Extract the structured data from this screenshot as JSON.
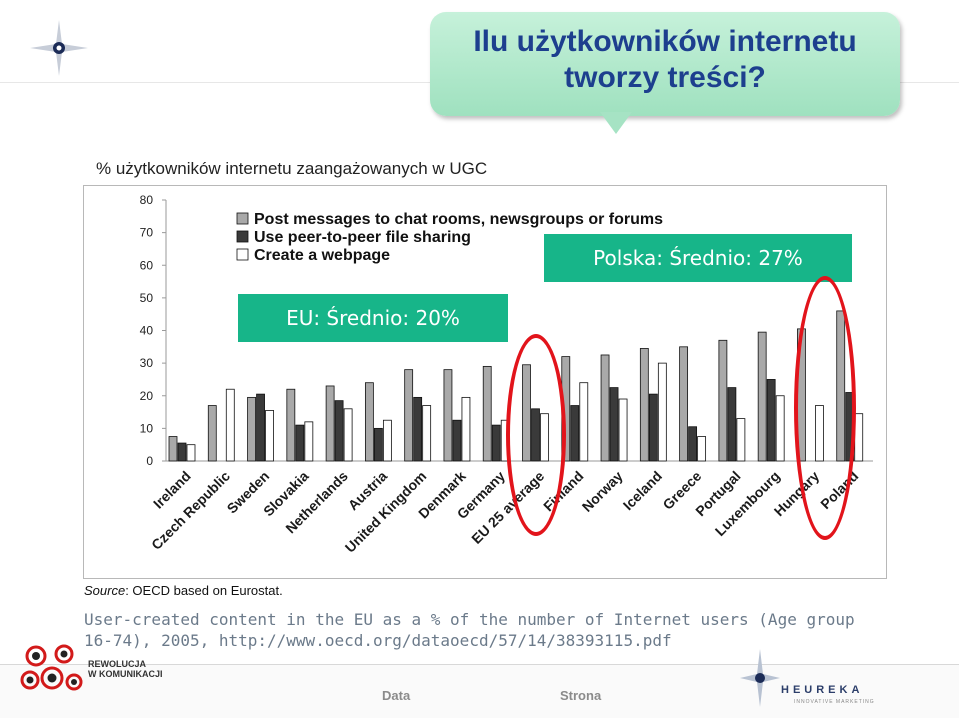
{
  "title": "Ilu użytkowników internetu tworzy treści?",
  "subtitle": "% użytkowników internetu zaangażowanych w UGC",
  "eu_label": "EU: Średnio: 20%",
  "pl_label": "Polska: Średnio: 27%",
  "source_prefix": "Source",
  "source_text": ": OECD based on Eurostat.",
  "caption": "User-created content in the EU as a % of the number of Internet users (Age group 16-74), 2005, http://www.oecd.org/dataoecd/57/14/38393115.pdf",
  "footer": {
    "nav_data": "Data",
    "nav_strona": "Strona",
    "logo_left_line1": "REWOLUCJA",
    "logo_left_line2": "W KOMUNIKACJI",
    "logo_right": "HEUREKA",
    "logo_right_sub": "INNOVATIVE MARKETING"
  },
  "colors": {
    "series1": "#a9a9a9",
    "series2": "#3a3a3a",
    "series3": "#ffffff",
    "highlight_box": "#17b589",
    "ellipse": "#e2141b",
    "title": "#1d3f8e"
  },
  "chart_data": {
    "type": "bar",
    "ylim": [
      0,
      80
    ],
    "yticks": [
      "0",
      "10",
      "20",
      "30",
      "40",
      "50",
      "60",
      "70",
      "80"
    ],
    "categories": [
      "Ireland",
      "Czech Republic",
      "Sweden",
      "Slovakia",
      "Netherlands",
      "Austria",
      "United Kingdom",
      "Denmark",
      "Germany",
      "EU 25 average",
      "Finland",
      "Norway",
      "Iceland",
      "Greece",
      "Portugal",
      "Luxembourg",
      "Hungary",
      "Poland"
    ],
    "series": [
      {
        "name": "Post messages to chat rooms, newsgroups or forums",
        "values": [
          7.5,
          17,
          19.5,
          22,
          23,
          24,
          28,
          28,
          29,
          29.5,
          32,
          32.5,
          34.5,
          35,
          37,
          39.5,
          40.5,
          46
        ]
      },
      {
        "name": "Use peer-to-peer file sharing",
        "values": [
          5.5,
          0,
          20.5,
          11,
          18.5,
          10,
          19.5,
          12.5,
          11,
          16,
          17,
          22.5,
          20.5,
          10.5,
          22.5,
          25,
          0,
          21
        ]
      },
      {
        "name": "Create a webpage",
        "values": [
          5,
          22,
          15.5,
          12,
          16,
          12.5,
          17,
          19.5,
          12.5,
          14.5,
          24,
          19,
          30,
          7.5,
          13,
          20,
          17,
          14.5
        ]
      }
    ],
    "legend_position": "top-left",
    "grid": false
  }
}
